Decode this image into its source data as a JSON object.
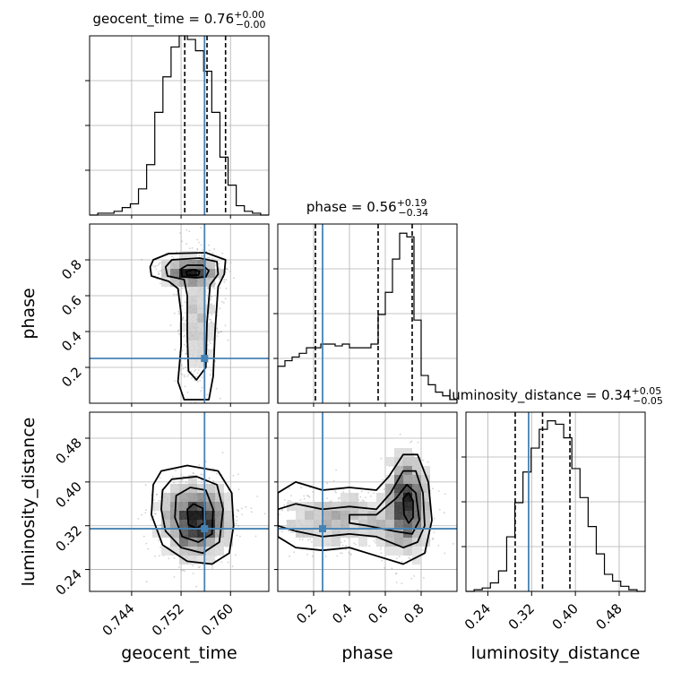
{
  "colors": {
    "truth": "#4682b4",
    "hist": "#000000",
    "grid": "#b0b0b0",
    "scatter": "#9a9a9a",
    "frame": "#000000"
  },
  "chart_data": {
    "type": "corner",
    "parameters": [
      "geocent_time",
      "phase",
      "luminosity_distance"
    ],
    "titles": [
      {
        "text": "geocent_time = 0.76",
        "plus": "+0.00",
        "minus": "−0.00"
      },
      {
        "text": "phase = 0.56",
        "plus": "+0.19",
        "minus": "−0.34"
      },
      {
        "text": "luminosity_distance = 0.34",
        "plus": "+0.05",
        "minus": "−0.05"
      }
    ],
    "ranges": [
      [
        0.7372,
        0.7662
      ],
      [
        0.0,
        1.0
      ],
      [
        0.2,
        0.5275
      ]
    ],
    "ticks": [
      [
        "0.744",
        "0.752",
        "0.760"
      ],
      [
        "0.2",
        "0.4",
        "0.6",
        "0.8"
      ],
      [
        "0.24",
        "0.32",
        "0.40",
        "0.48"
      ]
    ],
    "tick_values": [
      [
        0.744,
        0.752,
        0.76
      ],
      [
        0.2,
        0.4,
        0.6,
        0.8
      ],
      [
        0.24,
        0.32,
        0.4,
        0.48
      ]
    ],
    "truths": [
      0.7558,
      0.25,
      0.3145
    ],
    "quantiles": [
      [
        0.7526,
        0.7562,
        0.7592
      ],
      [
        0.21,
        0.56,
        0.75
      ],
      [
        0.29,
        0.34,
        0.39
      ]
    ],
    "histograms": [
      {
        "parameter": "geocent_time",
        "counts": [
          0,
          1,
          1,
          2,
          4,
          6,
          14,
          27,
          55,
          74,
          90,
          96,
          94,
          88,
          77,
          55,
          31,
          16,
          5,
          2,
          1,
          0
        ]
      },
      {
        "parameter": "phase",
        "counts": [
          20,
          23,
          25,
          27,
          30,
          30,
          32,
          32,
          31,
          32,
          30,
          30,
          30,
          32,
          48,
          60,
          78,
          92,
          90,
          45,
          15,
          10,
          6,
          4,
          2
        ]
      },
      {
        "parameter": "luminosity_distance",
        "counts": [
          0,
          1,
          2,
          5,
          12,
          32,
          52,
          70,
          84,
          95,
          100,
          98,
          90,
          72,
          55,
          38,
          22,
          10,
          6,
          3,
          1,
          0
        ]
      }
    ],
    "hist_peaks": [
      95,
      96,
      104
    ],
    "pairs": [
      {
        "x": "geocent_time",
        "y": "phase",
        "modes": [
          {
            "x": 0.7535,
            "y": 0.73,
            "sx": 0.0024,
            "sy": 0.035,
            "w": 0.55
          },
          {
            "x": 0.7548,
            "y": 0.48,
            "sx": 0.0016,
            "sy": 0.22,
            "w": 0.45
          }
        ],
        "contours": [
          [
            [
              0.747,
              0.76
            ],
            [
              0.7472,
              0.71
            ],
            [
              0.75,
              0.68
            ],
            [
              0.7515,
              0.64
            ],
            [
              0.752,
              0.5
            ],
            [
              0.752,
              0.32
            ],
            [
              0.7515,
              0.12
            ],
            [
              0.7525,
              0.02
            ],
            [
              0.7565,
              0.02
            ],
            [
              0.7572,
              0.15
            ],
            [
              0.7575,
              0.4
            ],
            [
              0.758,
              0.65
            ],
            [
              0.759,
              0.72
            ],
            [
              0.7592,
              0.8
            ],
            [
              0.756,
              0.84
            ],
            [
              0.75,
              0.835
            ],
            [
              0.7475,
              0.8
            ]
          ],
          [
            [
              0.7495,
              0.76
            ],
            [
              0.7498,
              0.71
            ],
            [
              0.7525,
              0.69
            ],
            [
              0.753,
              0.6
            ],
            [
              0.753,
              0.38
            ],
            [
              0.7532,
              0.18
            ],
            [
              0.7545,
              0.13
            ],
            [
              0.756,
              0.2
            ],
            [
              0.7562,
              0.45
            ],
            [
              0.7567,
              0.66
            ],
            [
              0.758,
              0.72
            ],
            [
              0.7578,
              0.79
            ],
            [
              0.755,
              0.81
            ],
            [
              0.7505,
              0.8
            ]
          ],
          [
            [
              0.752,
              0.75
            ],
            [
              0.7522,
              0.705
            ],
            [
              0.7545,
              0.7
            ],
            [
              0.756,
              0.705
            ],
            [
              0.7565,
              0.74
            ],
            [
              0.7555,
              0.77
            ],
            [
              0.753,
              0.77
            ]
          ],
          [
            [
              0.7528,
              0.735
            ],
            [
              0.753,
              0.715
            ],
            [
              0.7548,
              0.715
            ],
            [
              0.755,
              0.735
            ],
            [
              0.754,
              0.745
            ]
          ]
        ]
      },
      {
        "x": "geocent_time",
        "y": "luminosity_distance",
        "modes": [
          {
            "x": 0.7545,
            "y": 0.33,
            "sx": 0.0028,
            "sy": 0.035,
            "w": 1.0
          }
        ],
        "contours": [
          [
            [
              0.7475,
              0.395
            ],
            [
              0.7488,
              0.42
            ],
            [
              0.753,
              0.43
            ],
            [
              0.758,
              0.42
            ],
            [
              0.7602,
              0.38
            ],
            [
              0.7605,
              0.32
            ],
            [
              0.7598,
              0.27
            ],
            [
              0.757,
              0.25
            ],
            [
              0.753,
              0.255
            ],
            [
              0.749,
              0.285
            ],
            [
              0.7472,
              0.34
            ]
          ],
          [
            [
              0.749,
              0.385
            ],
            [
              0.7505,
              0.405
            ],
            [
              0.7545,
              0.41
            ],
            [
              0.7578,
              0.395
            ],
            [
              0.7588,
              0.35
            ],
            [
              0.7582,
              0.29
            ],
            [
              0.7555,
              0.27
            ],
            [
              0.752,
              0.28
            ],
            [
              0.7495,
              0.31
            ],
            [
              0.7488,
              0.35
            ]
          ],
          [
            [
              0.7512,
              0.375
            ],
            [
              0.7535,
              0.39
            ],
            [
              0.756,
              0.385
            ],
            [
              0.7572,
              0.35
            ],
            [
              0.757,
              0.305
            ],
            [
              0.7548,
              0.29
            ],
            [
              0.7522,
              0.3
            ],
            [
              0.751,
              0.335
            ]
          ],
          [
            [
              0.753,
              0.35
            ],
            [
              0.754,
              0.36
            ],
            [
              0.7555,
              0.352
            ],
            [
              0.7557,
              0.325
            ],
            [
              0.7545,
              0.315
            ],
            [
              0.7532,
              0.322
            ]
          ]
        ]
      },
      {
        "x": "phase",
        "y": "luminosity_distance",
        "modes": [
          {
            "x": 0.72,
            "y": 0.36,
            "sx": 0.06,
            "sy": 0.045,
            "w": 0.6
          },
          {
            "x": 0.35,
            "y": 0.33,
            "sx": 0.22,
            "sy": 0.03,
            "w": 0.4
          }
        ],
        "contours": [
          [
            [
              0.0,
              0.38
            ],
            [
              0.1,
              0.4
            ],
            [
              0.25,
              0.385
            ],
            [
              0.4,
              0.39
            ],
            [
              0.55,
              0.385
            ],
            [
              0.62,
              0.41
            ],
            [
              0.7,
              0.45
            ],
            [
              0.78,
              0.45
            ],
            [
              0.84,
              0.4
            ],
            [
              0.86,
              0.33
            ],
            [
              0.82,
              0.27
            ],
            [
              0.7,
              0.25
            ],
            [
              0.55,
              0.265
            ],
            [
              0.4,
              0.28
            ],
            [
              0.25,
              0.275
            ],
            [
              0.1,
              0.28
            ],
            [
              0.0,
              0.3
            ]
          ],
          [
            [
              0.0,
              0.35
            ],
            [
              0.1,
              0.36
            ],
            [
              0.25,
              0.35
            ],
            [
              0.4,
              0.355
            ],
            [
              0.55,
              0.35
            ],
            [
              0.63,
              0.38
            ],
            [
              0.7,
              0.42
            ],
            [
              0.77,
              0.42
            ],
            [
              0.81,
              0.38
            ],
            [
              0.82,
              0.32
            ],
            [
              0.78,
              0.29
            ],
            [
              0.7,
              0.28
            ],
            [
              0.55,
              0.3
            ],
            [
              0.4,
              0.305
            ],
            [
              0.25,
              0.3
            ],
            [
              0.1,
              0.31
            ],
            [
              0.0,
              0.32
            ]
          ],
          [
            [
              0.4,
              0.34
            ],
            [
              0.55,
              0.34
            ],
            [
              0.66,
              0.37
            ],
            [
              0.72,
              0.395
            ],
            [
              0.77,
              0.38
            ],
            [
              0.79,
              0.33
            ],
            [
              0.75,
              0.305
            ],
            [
              0.65,
              0.31
            ],
            [
              0.5,
              0.32
            ],
            [
              0.4,
              0.325
            ]
          ],
          [
            [
              0.7,
              0.37
            ],
            [
              0.73,
              0.38
            ],
            [
              0.755,
              0.365
            ],
            [
              0.755,
              0.335
            ],
            [
              0.73,
              0.325
            ],
            [
              0.705,
              0.34
            ]
          ]
        ]
      }
    ],
    "grid": true
  }
}
